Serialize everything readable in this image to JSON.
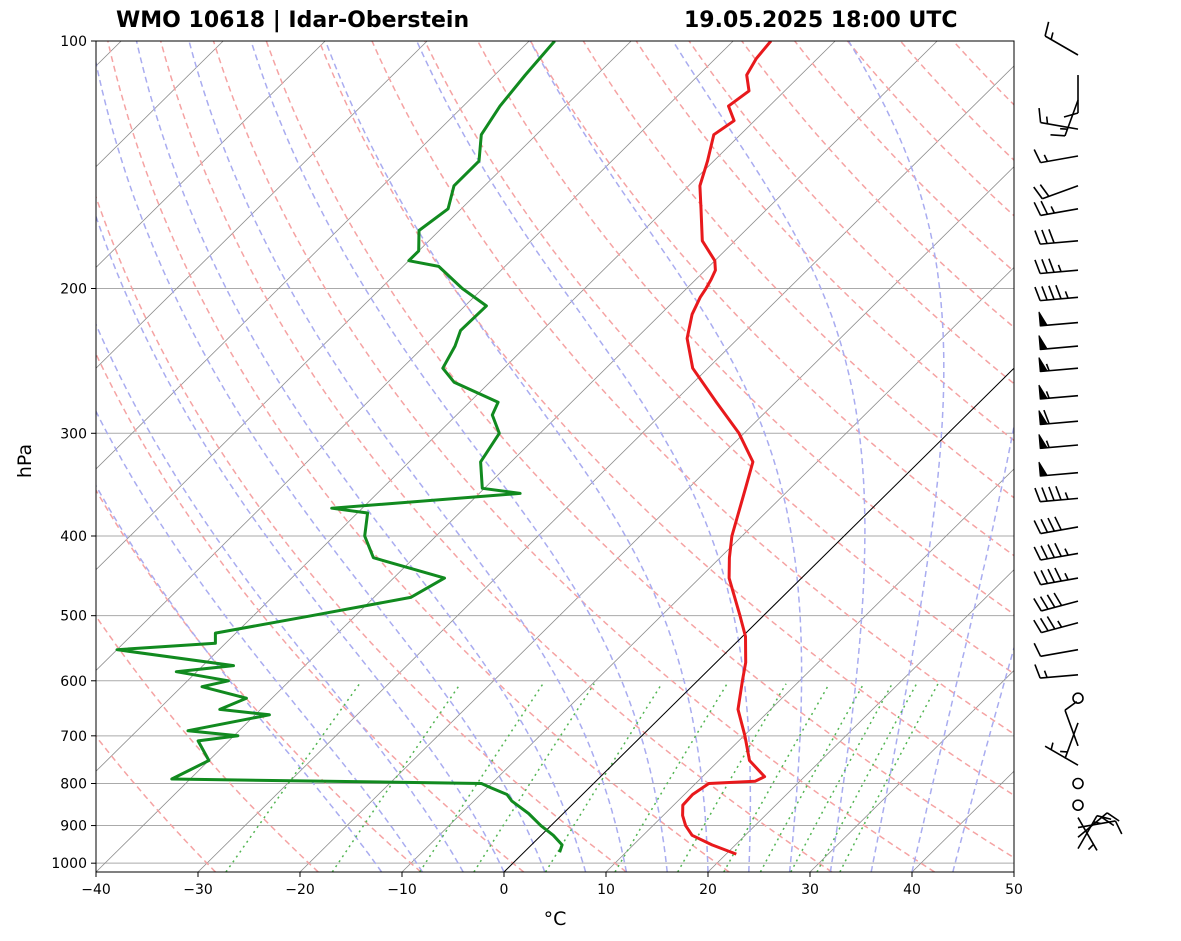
{
  "header": {
    "title_left": "WMO 10618 | Idar-Oberstein",
    "title_right": "19.05.2025 18:00 UTC"
  },
  "colors": {
    "temperature": "#e8191c",
    "dewpoint": "#118a1f",
    "dry_adiabat": "#f5a3a3",
    "moist_adiabat": "#a9acf0",
    "mixing_ratio": "#52b552",
    "isotherm": "#8c8c8c",
    "isobar": "#aaaaaa"
  },
  "chart_data": {
    "type": "skew-t log-p",
    "xlabel": "°C",
    "ylabel": "hPa",
    "xlim": [
      -40,
      50
    ],
    "ylim": [
      1025,
      100
    ],
    "y_scale": "log",
    "x_ticks": [
      "−40",
      "−30",
      "−20",
      "−10",
      "0",
      "10",
      "20",
      "30",
      "40",
      "50"
    ],
    "y_ticks": [
      "1000",
      "900",
      "800",
      "700",
      "600",
      "500",
      "400",
      "300",
      "200",
      "100"
    ],
    "grid": "on",
    "legend": "none",
    "series": [
      {
        "key": "temperature",
        "points": [
          [
            21.0,
            975
          ],
          [
            17.7,
            950
          ],
          [
            14.8,
            925
          ],
          [
            13.2,
            900
          ],
          [
            11.9,
            875
          ],
          [
            10.9,
            850
          ],
          [
            10.8,
            825
          ],
          [
            11.3,
            800
          ],
          [
            15.6,
            795
          ],
          [
            16.1,
            785
          ],
          [
            13.0,
            750
          ],
          [
            10.1,
            700
          ],
          [
            6.8,
            650
          ],
          [
            4.4,
            600
          ],
          [
            2.9,
            570
          ],
          [
            0.3,
            530
          ],
          [
            -2.3,
            500
          ],
          [
            -7.1,
            450
          ],
          [
            -9.1,
            425
          ],
          [
            -11.0,
            400
          ],
          [
            -14.4,
            350
          ],
          [
            -16.3,
            325
          ],
          [
            -20.5,
            300
          ],
          [
            -25.8,
            275
          ],
          [
            -31.5,
            250
          ],
          [
            -35.0,
            230
          ],
          [
            -36.9,
            215
          ],
          [
            -37.8,
            205
          ],
          [
            -38.1,
            200
          ],
          [
            -38.5,
            195
          ],
          [
            -39.0,
            190
          ],
          [
            -40.0,
            185
          ],
          [
            -43.2,
            175
          ],
          [
            -46.5,
            160
          ],
          [
            -48.9,
            150
          ],
          [
            -50.6,
            140
          ],
          [
            -52.6,
            130
          ],
          [
            -52.0,
            125
          ],
          [
            -54.0,
            120
          ],
          [
            -53.5,
            115
          ],
          [
            -55.3,
            110
          ],
          [
            -56.0,
            105
          ],
          [
            -56.3,
            100
          ]
        ]
      },
      {
        "key": "dewpoint",
        "points": [
          [
            3.5,
            970
          ],
          [
            3.0,
            950
          ],
          [
            1.2,
            925
          ],
          [
            -1.0,
            900
          ],
          [
            -3.4,
            870
          ],
          [
            -6.3,
            840
          ],
          [
            -7.4,
            825
          ],
          [
            -9.6,
            810
          ],
          [
            -11.0,
            800
          ],
          [
            -41.8,
            790
          ],
          [
            -40.0,
            750
          ],
          [
            -43.0,
            710
          ],
          [
            -39.6,
            700
          ],
          [
            -45.0,
            690
          ],
          [
            -38.6,
            660
          ],
          [
            -44.0,
            650
          ],
          [
            -42.5,
            630
          ],
          [
            -48.0,
            610
          ],
          [
            -46.0,
            600
          ],
          [
            -52.0,
            585
          ],
          [
            -47.0,
            575
          ],
          [
            -60.0,
            550
          ],
          [
            -51.0,
            540
          ],
          [
            -52.0,
            525
          ],
          [
            -44.3,
            500
          ],
          [
            -36.4,
            475
          ],
          [
            -35.0,
            450
          ],
          [
            -44.0,
            425
          ],
          [
            -47.0,
            400
          ],
          [
            -49.0,
            375
          ],
          [
            -53.0,
            370
          ],
          [
            -36.0,
            355
          ],
          [
            -40.2,
            350
          ],
          [
            -43.0,
            325
          ],
          [
            -44.0,
            300
          ],
          [
            -46.5,
            285
          ],
          [
            -47.2,
            275
          ],
          [
            -53.5,
            260
          ],
          [
            -56.0,
            250
          ],
          [
            -57.0,
            235
          ],
          [
            -58.0,
            225
          ],
          [
            -57.9,
            210
          ],
          [
            -62.0,
            200
          ],
          [
            -66.5,
            188
          ],
          [
            -70.0,
            185
          ],
          [
            -70.0,
            180
          ],
          [
            -72.0,
            170
          ],
          [
            -71.3,
            160
          ],
          [
            -73.0,
            150
          ],
          [
            -73.0,
            140
          ],
          [
            -75.4,
            130
          ],
          [
            -76.4,
            120
          ],
          [
            -77.0,
            110
          ],
          [
            -77.5,
            100
          ]
        ]
      }
    ],
    "wind_barbs": [
      {
        "p": 960,
        "dir": 30,
        "speed": 15
      },
      {
        "p": 930,
        "dir": 50,
        "speed": 20
      },
      {
        "p": 905,
        "dir": 80,
        "speed": 10
      },
      {
        "p": 880,
        "dir": 150,
        "speed": 5
      },
      {
        "p": 850,
        "dir": 210,
        "speed": 0
      },
      {
        "p": 800,
        "dir": 0,
        "speed": 0
      },
      {
        "p": 760,
        "dir": 300,
        "speed": 5
      },
      {
        "p": 720,
        "dir": 340,
        "speed": 10
      },
      {
        "p": 675,
        "dir": 200,
        "speed": 5
      },
      {
        "p": 630,
        "dir": 0,
        "speed": 0
      },
      {
        "p": 590,
        "dir": 265,
        "speed": 15
      },
      {
        "p": 550,
        "dir": 260,
        "speed": 10
      },
      {
        "p": 510,
        "dir": 255,
        "speed": 35
      },
      {
        "p": 480,
        "dir": 255,
        "speed": 40
      },
      {
        "p": 450,
        "dir": 260,
        "speed": 45
      },
      {
        "p": 420,
        "dir": 260,
        "speed": 45
      },
      {
        "p": 390,
        "dir": 260,
        "speed": 40
      },
      {
        "p": 360,
        "dir": 265,
        "speed": 45
      },
      {
        "p": 335,
        "dir": 265,
        "speed": 50
      },
      {
        "p": 310,
        "dir": 265,
        "speed": 55
      },
      {
        "p": 290,
        "dir": 265,
        "speed": 60
      },
      {
        "p": 270,
        "dir": 265,
        "speed": 55
      },
      {
        "p": 250,
        "dir": 265,
        "speed": 55
      },
      {
        "p": 235,
        "dir": 265,
        "speed": 50
      },
      {
        "p": 220,
        "dir": 265,
        "speed": 50
      },
      {
        "p": 205,
        "dir": 265,
        "speed": 45
      },
      {
        "p": 190,
        "dir": 265,
        "speed": 35
      },
      {
        "p": 175,
        "dir": 265,
        "speed": 30
      },
      {
        "p": 160,
        "dir": 260,
        "speed": 25
      },
      {
        "p": 150,
        "dir": 250,
        "speed": 20
      },
      {
        "p": 138,
        "dir": 260,
        "speed": 15
      },
      {
        "p": 128,
        "dir": 280,
        "speed": 15
      },
      {
        "p": 118,
        "dir": 200,
        "speed": 15
      },
      {
        "p": 110,
        "dir": 180,
        "speed": 10
      },
      {
        "p": 104,
        "dir": 300,
        "speed": 15
      }
    ]
  }
}
